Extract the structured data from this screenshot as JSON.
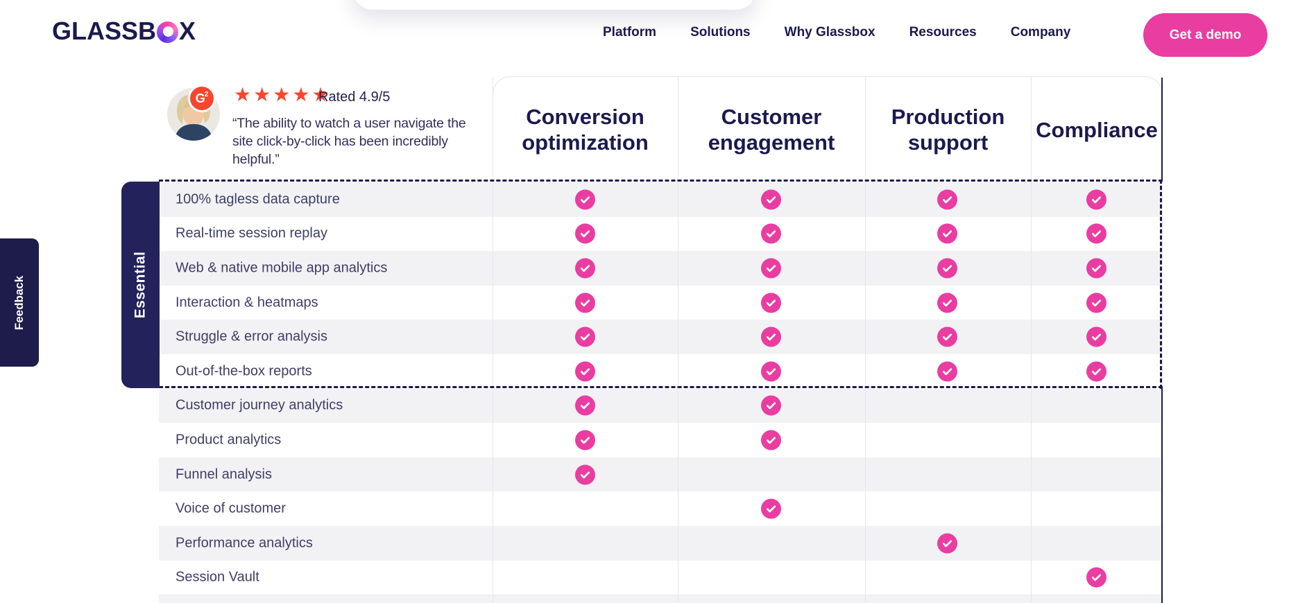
{
  "brand": {
    "logo_text_pre": "GLASSB",
    "logo_text_post": "X",
    "name": "Glassbox"
  },
  "nav": {
    "items": [
      "Platform",
      "Solutions",
      "Why Glassbox",
      "Resources",
      "Company"
    ],
    "cta_label": "Get a demo"
  },
  "feedback_tab": {
    "label": "Feedback"
  },
  "testimonial": {
    "source": "G2",
    "badge_letter": "G",
    "badge_sup": "2",
    "stars": 5,
    "rating_label": "Rated 4.9/5",
    "quote": "“The ability to watch a user navigate the site click-by-click has been incredibly helpful.”"
  },
  "table": {
    "group_label": "Essential",
    "columns": [
      "Conversion optimization",
      "Customer engagement",
      "Production support",
      "Compliance"
    ],
    "rows": [
      {
        "label": "100% tagless data capture",
        "checks": [
          true,
          true,
          true,
          true
        ],
        "essential": true
      },
      {
        "label": "Real-time session replay",
        "checks": [
          true,
          true,
          true,
          true
        ],
        "essential": true
      },
      {
        "label": "Web & native mobile app analytics",
        "checks": [
          true,
          true,
          true,
          true
        ],
        "essential": true
      },
      {
        "label": "Interaction & heatmaps",
        "checks": [
          true,
          true,
          true,
          true
        ],
        "essential": true
      },
      {
        "label": "Struggle & error analysis",
        "checks": [
          true,
          true,
          true,
          true
        ],
        "essential": true
      },
      {
        "label": "Out-of-the-box reports",
        "checks": [
          true,
          true,
          true,
          true
        ],
        "essential": true
      },
      {
        "label": "Customer journey analytics",
        "checks": [
          true,
          true,
          false,
          false
        ],
        "essential": false
      },
      {
        "label": "Product analytics",
        "checks": [
          true,
          true,
          false,
          false
        ],
        "essential": false
      },
      {
        "label": "Funnel analysis",
        "checks": [
          true,
          false,
          false,
          false
        ],
        "essential": false
      },
      {
        "label": "Voice of customer",
        "checks": [
          false,
          true,
          false,
          false
        ],
        "essential": false
      },
      {
        "label": "Performance analytics",
        "checks": [
          false,
          false,
          true,
          false
        ],
        "essential": false
      },
      {
        "label": "Session Vault",
        "checks": [
          false,
          false,
          false,
          true
        ],
        "essential": false
      }
    ]
  },
  "colors": {
    "accent_pink": "#e93da1",
    "navy": "#1b1a4e",
    "star_red": "#f8462e",
    "stripe_gray": "#f2f2f4"
  }
}
